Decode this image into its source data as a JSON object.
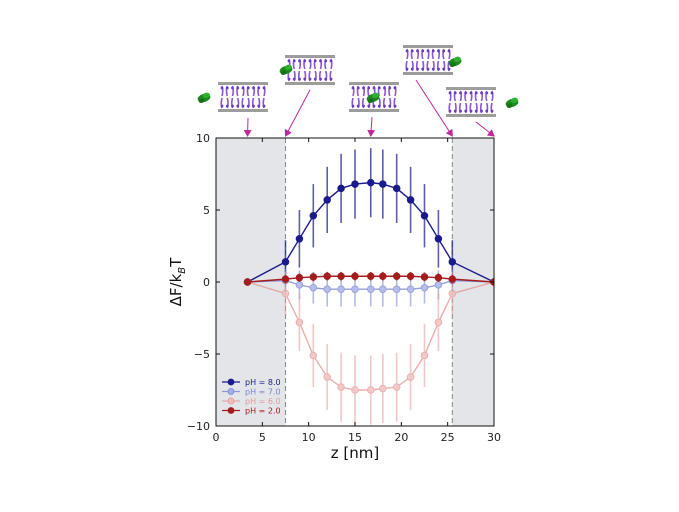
{
  "chart_data": {
    "type": "line",
    "xlabel": "z [nm]",
    "ylabel_main": "ΔF/k",
    "ylabel_sub": "B",
    "ylabel_tail": "T",
    "xlim": [
      0,
      30
    ],
    "ylim": [
      -10,
      10
    ],
    "xticks": [
      0,
      5,
      10,
      15,
      20,
      25,
      30
    ],
    "yticks": [
      -10,
      -5,
      0,
      5,
      10
    ],
    "grid": false,
    "legend_position": "bottom-left",
    "shaded_regions": [
      [
        0,
        7.5
      ],
      [
        25.5,
        30
      ]
    ],
    "dashed_lines": [
      7.5,
      25.5
    ],
    "membrane_markers_z": [
      3.4,
      7.5,
      16.7,
      25.5,
      30
    ],
    "series": [
      {
        "name": "pH = 8.0",
        "color": "#1a1a8c",
        "marker_fill": "#1a1a8c",
        "line_alpha": 1.0,
        "x": [
          3.4,
          7.5,
          9,
          10.5,
          12,
          13.5,
          15,
          16.7,
          18,
          19.5,
          21,
          22.5,
          24,
          25.5,
          30
        ],
        "y": [
          0,
          1.4,
          3.0,
          4.6,
          5.7,
          6.5,
          6.8,
          6.9,
          6.8,
          6.5,
          5.7,
          4.6,
          3.0,
          1.4,
          0
        ],
        "yerr": [
          0,
          1.5,
          2.0,
          2.2,
          2.3,
          2.4,
          2.4,
          2.4,
          2.4,
          2.4,
          2.3,
          2.2,
          2.0,
          1.5,
          0
        ]
      },
      {
        "name": "pH = 7.0",
        "color": "#7b86d3",
        "marker_fill": "#a3aee6",
        "line_alpha": 0.8,
        "x": [
          3.4,
          7.5,
          9,
          10.5,
          12,
          13.5,
          15,
          16.7,
          18,
          19.5,
          21,
          22.5,
          24,
          25.5,
          30
        ],
        "y": [
          0,
          0.1,
          -0.2,
          -0.4,
          -0.5,
          -0.5,
          -0.5,
          -0.5,
          -0.5,
          -0.5,
          -0.5,
          -0.4,
          -0.2,
          0.1,
          0
        ],
        "yerr": [
          0,
          0.8,
          1.0,
          1.1,
          1.2,
          1.2,
          1.2,
          1.2,
          1.2,
          1.2,
          1.2,
          1.1,
          1.0,
          0.8,
          0
        ]
      },
      {
        "name": "pH = 6.0",
        "color": "#e69a9a",
        "marker_fill": "#f0bcbc",
        "line_alpha": 0.8,
        "x": [
          3.4,
          7.5,
          9,
          10.5,
          12,
          13.5,
          15,
          16.7,
          18,
          19.5,
          21,
          22.5,
          24,
          25.5,
          30
        ],
        "y": [
          0,
          -0.8,
          -2.8,
          -5.1,
          -6.6,
          -7.3,
          -7.5,
          -7.5,
          -7.4,
          -7.3,
          -6.6,
          -5.1,
          -2.8,
          -0.8,
          0
        ],
        "yerr": [
          0,
          1.5,
          2.0,
          2.2,
          2.3,
          2.4,
          2.4,
          2.4,
          2.4,
          2.4,
          2.3,
          2.2,
          2.0,
          1.5,
          0
        ]
      },
      {
        "name": "pH = 2.0",
        "color": "#a51c1c",
        "marker_fill": "#a51c1c",
        "line_alpha": 1.0,
        "x": [
          3.4,
          7.5,
          9,
          10.5,
          12,
          13.5,
          15,
          16.7,
          18,
          19.5,
          21,
          22.5,
          24,
          25.5,
          30
        ],
        "y": [
          0,
          0.2,
          0.3,
          0.35,
          0.4,
          0.4,
          0.4,
          0.4,
          0.4,
          0.4,
          0.4,
          0.35,
          0.3,
          0.2,
          0
        ],
        "yerr": [
          0,
          0.3,
          0.3,
          0.3,
          0.3,
          0.3,
          0.3,
          0.3,
          0.3,
          0.3,
          0.3,
          0.3,
          0.3,
          0.3,
          0
        ]
      }
    ]
  }
}
